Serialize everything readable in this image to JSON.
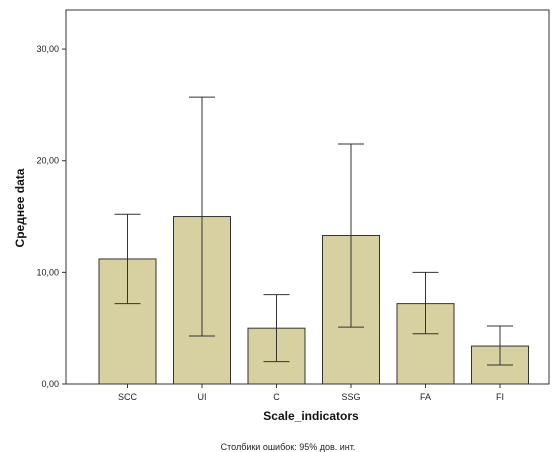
{
  "chart_data": {
    "type": "bar",
    "categories": [
      "SCC",
      "UI",
      "C",
      "SSG",
      "FA",
      "FI"
    ],
    "values": [
      11.2,
      15.0,
      5.0,
      13.3,
      7.2,
      3.4
    ],
    "error_low": [
      7.2,
      4.3,
      2.0,
      5.1,
      4.5,
      1.7
    ],
    "error_high": [
      15.2,
      25.7,
      8.0,
      21.5,
      10.0,
      5.2
    ],
    "xlabel": "Scale_indicators",
    "ylabel": "Среднее data",
    "ylim": [
      0,
      33.5
    ],
    "yticks": [
      0,
      10,
      20,
      30
    ],
    "ytick_labels": [
      "0,00",
      "10,00",
      "20,00",
      "30,00"
    ],
    "footnote": "Столбики ошибок: 95% дов. инт.",
    "bar_color": "#d7d1a1",
    "grid": false
  }
}
